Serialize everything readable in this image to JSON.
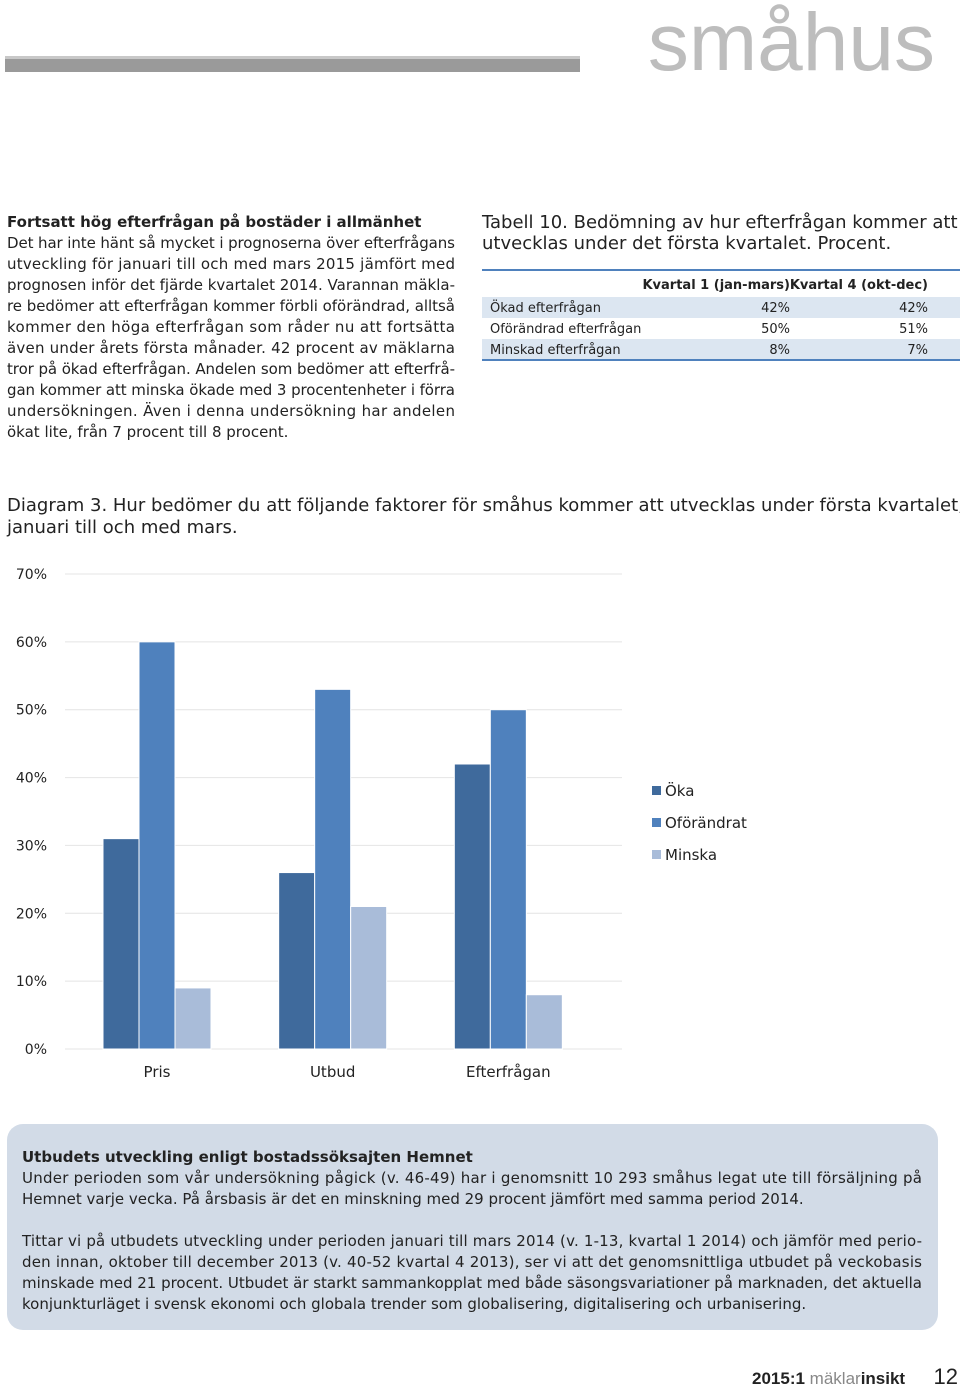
{
  "header": {
    "title": "småhus"
  },
  "article": {
    "heading": "Fortsatt hög efterfrågan på bostäder i allmänhet",
    "lines": [
      "Det har inte hänt så mycket i prognoserna över efterfrågans",
      "utveckling för januari till och med mars 2015 jämfört med",
      "prognosen inför det fjärde kvartalet 2014. Varannan mäkla-",
      "re bedömer att efterfrågan kommer förbli oförändrad, alltså",
      "kommer den höga efterfrågan som råder nu att fortsätta",
      "även under årets första månader. 42 procent av mäklarna",
      "tror på ökad efterfrågan. Andelen som bedömer att efterfrå-",
      "gan kommer att minska ökade med 3 procentenheter i förra",
      "undersökningen. Även i denna undersökning har andelen",
      "ökat lite, från 7 procent till 8 procent."
    ]
  },
  "table": {
    "caption": [
      "Tabell 10. Bedömning av hur efterfrågan kommer att",
      "utvecklas under det första kvartalet. Procent."
    ],
    "header": [
      "Kvartal 1 (jan-mars)",
      "Kvartal 4 (okt-dec)"
    ],
    "rows": [
      [
        "Ökad efterfrågan",
        "42%",
        "42%"
      ],
      [
        "Oförändrad efterfrågan",
        "50%",
        "51%"
      ],
      [
        "Minskad efterfrågan",
        "8%",
        "7%"
      ]
    ]
  },
  "diagram_caption": [
    "Diagram 3. Hur bedömer du att följande faktorer för småhus kommer att utvecklas under första kvartalet,",
    "januari till och med mars."
  ],
  "chart_data": {
    "type": "bar",
    "categories": [
      "Pris",
      "Utbud",
      "Efterfrågan"
    ],
    "series": [
      {
        "name": "Öka",
        "color": "#3f6a9c",
        "values": [
          31,
          26,
          42
        ]
      },
      {
        "name": "Oförändrat",
        "color": "#4f81bd",
        "values": [
          60,
          53,
          50
        ]
      },
      {
        "name": "Minska",
        "color": "#a9bcd9",
        "values": [
          9,
          21,
          8
        ]
      }
    ],
    "ylim": [
      0,
      70
    ],
    "yticks": [
      {
        "value": 0,
        "label": "0%"
      },
      {
        "value": 10,
        "label": "10%"
      },
      {
        "value": 20,
        "label": "20%"
      },
      {
        "value": 30,
        "label": "30%"
      },
      {
        "value": 40,
        "label": "40%"
      },
      {
        "value": 50,
        "label": "50%"
      },
      {
        "value": 60,
        "label": "60%"
      },
      {
        "value": 70,
        "label": "70%"
      }
    ],
    "grid": true,
    "legend": "right"
  },
  "box": {
    "heading": "Utbudets utveckling enligt bostadssöksajten Hemnet",
    "paragraphs": [
      [
        "Under perioden som vår undersökning pågick (v. 46-49) har i genomsnitt 10 293 småhus legat ute till försäljning på",
        "Hemnet varje vecka. På årsbasis är det en minskning med 29 procent jämfört med samma period 2014."
      ],
      [
        "Tittar vi på utbudets utveckling under perioden januari till mars 2014 (v. 1-13, kvartal 1 2014) och jämför med perio-",
        "den innan, oktober till december 2013 (v. 40-52 kvartal 4 2013), ser vi att det genomsnittliga utbudet på veckobasis",
        "minskade med 21 procent. Utbudet är starkt sammankopplat med både säsongsvariationer på marknaden, det aktuella",
        "konjunkturläget i svensk ekonomi och globala trender som globalisering, digitalisering och urbanisering."
      ]
    ]
  },
  "footer": {
    "issue": "2015:1",
    "brand_a": "mäklar",
    "brand_b": "insikt",
    "page": "12"
  }
}
